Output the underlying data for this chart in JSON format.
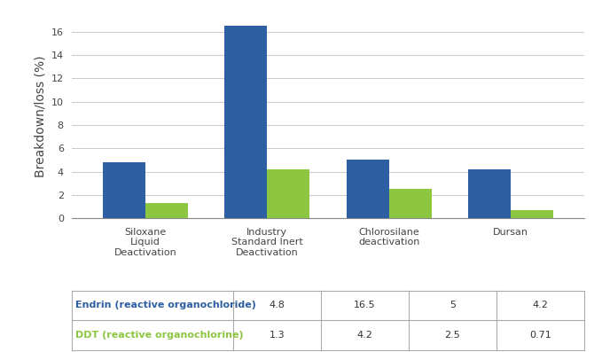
{
  "categories": [
    "Siloxane\nLiquid\nDeactivation",
    "Industry\nStandard Inert\nDeactivation",
    "Chlorosilane\ndeactivation",
    "Dursan"
  ],
  "endrin_values": [
    4.8,
    16.5,
    5,
    4.2
  ],
  "ddt_values": [
    1.3,
    4.2,
    2.5,
    0.71
  ],
  "endrin_color": "#2E5FA3",
  "ddt_color": "#8DC641",
  "bar_width": 0.35,
  "ylim": [
    0,
    17.5
  ],
  "yticks": [
    0,
    2,
    4,
    6,
    8,
    10,
    12,
    14,
    16
  ],
  "ylabel": "Breakdown/loss (%)",
  "table_endrin_label": "Endrin (reactive organochloride)",
  "table_ddt_label": "DDT (reactive organochlorine)",
  "table_endrin_values": [
    "4.8",
    "16.5",
    "5",
    "4.2"
  ],
  "table_ddt_values": [
    "1.3",
    "4.2",
    "2.5",
    "0.71"
  ],
  "background_color": "#ffffff",
  "grid_color": "#cccccc",
  "ylabel_fontsize": 10,
  "tick_fontsize": 8,
  "table_fontsize": 8,
  "cat_fontsize": 8
}
